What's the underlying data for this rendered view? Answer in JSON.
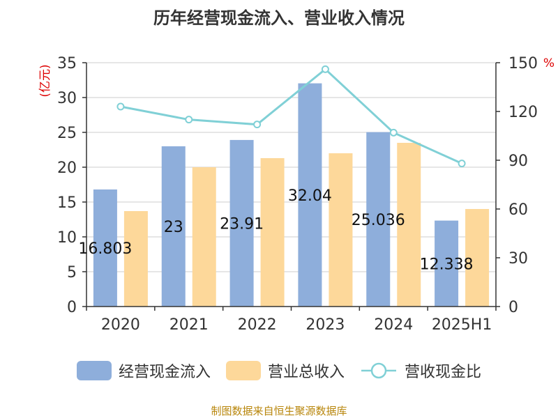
{
  "chart_data": {
    "type": "bar",
    "title": "历年经营现金流入、营业收入情况",
    "ylabel_left": "(亿元)",
    "ylabel_right": "%",
    "ylim_left": [
      0,
      35
    ],
    "ylim_right": [
      0,
      150
    ],
    "yticks_left": [
      "0",
      "5",
      "10",
      "15",
      "20",
      "25",
      "30",
      "35"
    ],
    "yticks_right": [
      "0",
      "30",
      "60",
      "90",
      "120",
      "150"
    ],
    "categories": [
      "2020",
      "2021",
      "2022",
      "2023",
      "2024",
      "2025H1"
    ],
    "series": [
      {
        "name": "经营现金流入",
        "type": "bar",
        "axis": "left",
        "color": "#8eaedb",
        "values": [
          16.803,
          23,
          23.91,
          32.04,
          25.036,
          12.338
        ],
        "labels": [
          "16.803",
          "23",
          "23.91",
          "32.04",
          "25.036",
          "12.338"
        ]
      },
      {
        "name": "营业总收入",
        "type": "bar",
        "axis": "left",
        "color": "#fdd89a",
        "values": [
          13.7,
          20.0,
          21.3,
          22.0,
          23.5,
          14.0
        ]
      },
      {
        "name": "营收现金比",
        "type": "line",
        "axis": "right",
        "color": "#80d0d6",
        "values": [
          123,
          115,
          112,
          146,
          107,
          88
        ]
      }
    ],
    "grid": true,
    "legend_position": "bottom",
    "source": "制图数据来自恒生聚源数据库"
  }
}
